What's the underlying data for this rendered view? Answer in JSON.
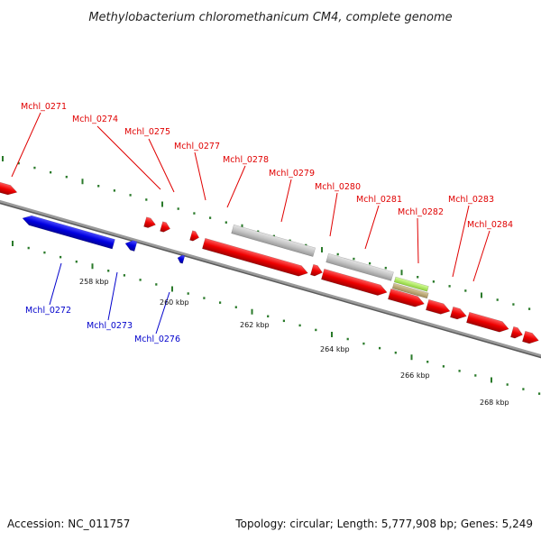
{
  "title": "Methylobacterium chloromethanicum CM4, complete genome",
  "footer": {
    "accession": "Accession: NC_011757",
    "summary": "Topology: circular; Length: 5,777,908 bp; Genes: 5,249"
  },
  "colors": {
    "forward_gene": "#ff0000",
    "reverse_gene": "#0000ff",
    "pseudo_gene": "#c0c0c0",
    "misc_feature_green": "#a8e060",
    "misc_feature_tan": "#c0b080",
    "backbone": "#808080",
    "tick": "#2a7a2a"
  },
  "scale_labels": [
    "258 kbp",
    "260 kbp",
    "262 kbp",
    "264 kbp",
    "266 kbp",
    "268 kbp"
  ],
  "forward_labels": [
    "Mchl_0271",
    "Mchl_0274",
    "Mchl_0275",
    "Mchl_0277",
    "Mchl_0278",
    "Mchl_0279",
    "Mchl_0280",
    "Mchl_0281",
    "Mchl_0282",
    "Mchl_0283",
    "Mchl_0284"
  ],
  "reverse_labels": [
    "Mchl_0272",
    "Mchl_0273",
    "Mchl_0276"
  ]
}
